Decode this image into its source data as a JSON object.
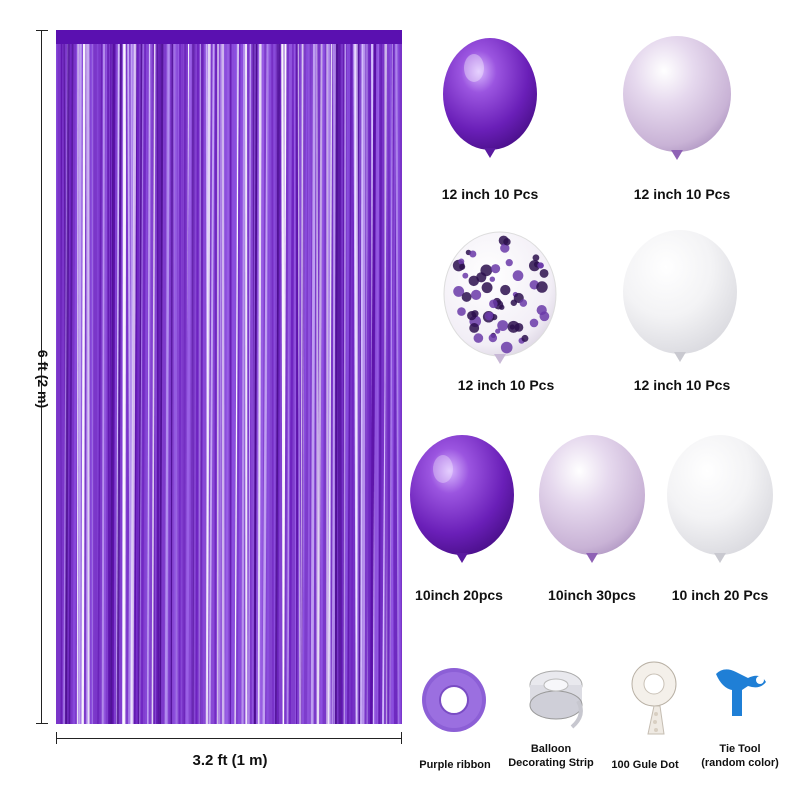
{
  "curtain": {
    "height_label": "6 ft (2 m)",
    "width_label": "3.2 ft (1 m)",
    "color_dark": "#5a0fa8",
    "color_light": "#b48ef0"
  },
  "balloons": [
    {
      "label": "12 inch 10 Pcs",
      "color": "purple-metallic"
    },
    {
      "label": "12 inch 10 Pcs",
      "color": "lavender-pearl"
    },
    {
      "label": "12 inch 10 Pcs",
      "color": "confetti-clear"
    },
    {
      "label": "12 inch 10 Pcs",
      "color": "white-pearl"
    },
    {
      "label": "10inch 20pcs",
      "color": "purple-metallic"
    },
    {
      "label": "10inch 30pcs",
      "color": "lavender-pearl"
    },
    {
      "label": "10 inch 20 Pcs",
      "color": "white-pearl"
    }
  ],
  "accessories": [
    {
      "label": "Purple ribbon",
      "icon": "ribbon-roll-icon"
    },
    {
      "label_line1": "Balloon",
      "label_line2": "Decorating Strip",
      "icon": "decorating-strip-icon"
    },
    {
      "label": "100 Gule Dot",
      "icon": "glue-dot-roll-icon"
    },
    {
      "label_line1": "Tie Tool",
      "label_line2": "(random color)",
      "icon": "tie-tool-icon"
    }
  ]
}
